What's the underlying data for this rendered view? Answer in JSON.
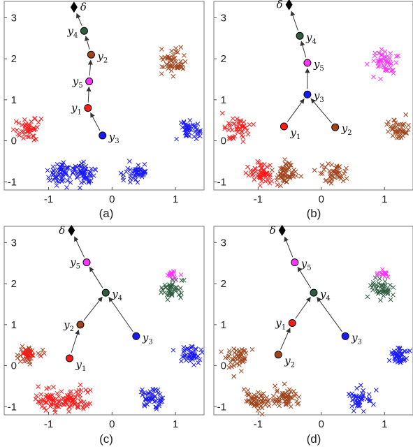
{
  "figure": {
    "colors": {
      "red": "#ff1a1a",
      "blue": "#1a1aff",
      "brown": "#a0441c",
      "green": "#2e5d40",
      "magenta": "#ff33ff",
      "black": "#000000"
    }
  },
  "chart_data": [
    {
      "type": "scatter",
      "panel_label": "(a)",
      "title": "",
      "xlabel": "",
      "ylabel": "",
      "xlim": [
        -1.7,
        1.45
      ],
      "ylim": [
        -1.2,
        3.4
      ],
      "xticks": [
        "-1",
        "0",
        "1"
      ],
      "xtick_values": [
        -1,
        0,
        1
      ],
      "yticks": [
        "-1",
        "0",
        "1",
        "2",
        "3"
      ],
      "ytick_values": [
        -1,
        0,
        1,
        2,
        3
      ],
      "grid": false,
      "clusters": [
        {
          "center": [
            -1.32,
            0.27
          ],
          "spread": [
            0.11,
            0.14
          ],
          "color": "red",
          "count": 45
        },
        {
          "center": [
            -0.82,
            -0.82
          ],
          "spread": [
            0.1,
            0.12
          ],
          "color": "blue",
          "count": 55
        },
        {
          "center": [
            -0.46,
            -0.82
          ],
          "spread": [
            0.1,
            0.14
          ],
          "color": "blue",
          "count": 60
        },
        {
          "center": [
            0.36,
            -0.8
          ],
          "spread": [
            0.1,
            0.12
          ],
          "color": "blue",
          "count": 50
        },
        {
          "center": [
            0.95,
            1.95
          ],
          "spread": [
            0.09,
            0.15
          ],
          "color": "brown",
          "count": 50
        },
        {
          "center": [
            1.23,
            0.26
          ],
          "spread": [
            0.09,
            0.11
          ],
          "color": "blue",
          "count": 45
        }
      ],
      "nodes": [
        {
          "label": "y",
          "sub": "1",
          "x": -0.38,
          "y": 0.8,
          "color": "red",
          "label_side": "left"
        },
        {
          "label": "y",
          "sub": "2",
          "x": -0.33,
          "y": 2.1,
          "color": "brown",
          "label_side": "right"
        },
        {
          "label": "y",
          "sub": "3",
          "x": -0.15,
          "y": 0.13,
          "color": "blue",
          "label_side": "right"
        },
        {
          "label": "y",
          "sub": "4",
          "x": -0.44,
          "y": 2.68,
          "color": "green",
          "label_side": "left"
        },
        {
          "label": "y",
          "sub": "5",
          "x": -0.36,
          "y": 1.45,
          "color": "magenta",
          "label_side": "left"
        }
      ],
      "root": {
        "label": "δ",
        "x": -0.6,
        "y": 3.26,
        "label_side": "right"
      },
      "edges": [
        [
          "y3",
          "y1"
        ],
        [
          "y1",
          "y5"
        ],
        [
          "y5",
          "y2"
        ],
        [
          "y2",
          "y4"
        ],
        [
          "y4",
          "root"
        ]
      ]
    },
    {
      "type": "scatter",
      "panel_label": "(b)",
      "title": "",
      "xlabel": "",
      "ylabel": "",
      "xlim": [
        -1.7,
        1.45
      ],
      "ylim": [
        -1.2,
        3.4
      ],
      "xticks": [
        "-1",
        "0",
        "1"
      ],
      "xtick_values": [
        -1,
        0,
        1
      ],
      "yticks": [
        "-1",
        "0",
        "1",
        "2",
        "3"
      ],
      "ytick_values": [
        -1,
        0,
        1,
        2,
        3
      ],
      "grid": false,
      "clusters": [
        {
          "center": [
            -1.32,
            0.27
          ],
          "spread": [
            0.11,
            0.14
          ],
          "color": "red",
          "count": 45
        },
        {
          "center": [
            -0.95,
            -0.82
          ],
          "spread": [
            0.1,
            0.12
          ],
          "color": "red",
          "count": 55
        },
        {
          "center": [
            -0.58,
            -0.82
          ],
          "spread": [
            0.1,
            0.14
          ],
          "color": "brown",
          "count": 55
        },
        {
          "center": [
            0.22,
            -0.82
          ],
          "spread": [
            0.09,
            0.12
          ],
          "color": "brown",
          "count": 45
        },
        {
          "center": [
            0.98,
            1.92
          ],
          "spread": [
            0.09,
            0.15
          ],
          "color": "magenta",
          "count": 50
        },
        {
          "center": [
            1.23,
            0.26
          ],
          "spread": [
            0.09,
            0.11
          ],
          "color": "brown",
          "count": 45
        }
      ],
      "nodes": [
        {
          "label": "y",
          "sub": "1",
          "x": -0.59,
          "y": 0.35,
          "color": "red",
          "label_side": "below-right"
        },
        {
          "label": "y",
          "sub": "2",
          "x": 0.22,
          "y": 0.33,
          "color": "brown",
          "label_side": "right"
        },
        {
          "label": "y",
          "sub": "3",
          "x": -0.22,
          "y": 1.13,
          "color": "blue",
          "label_side": "right"
        },
        {
          "label": "y",
          "sub": "4",
          "x": -0.34,
          "y": 2.56,
          "color": "green",
          "label_side": "right"
        },
        {
          "label": "y",
          "sub": "5",
          "x": -0.22,
          "y": 1.9,
          "color": "magenta",
          "label_side": "right"
        }
      ],
      "root": {
        "label": "δ",
        "x": -0.51,
        "y": 3.32,
        "label_side": "left"
      },
      "edges": [
        [
          "y1",
          "y3"
        ],
        [
          "y2",
          "y3"
        ],
        [
          "y3",
          "y5"
        ],
        [
          "y5",
          "y4"
        ],
        [
          "y4",
          "root"
        ]
      ]
    },
    {
      "type": "scatter",
      "panel_label": "(c)",
      "title": "",
      "xlabel": "",
      "ylabel": "",
      "xlim": [
        -1.7,
        1.45
      ],
      "ylim": [
        -1.2,
        3.4
      ],
      "xticks": [
        "-1",
        "0",
        "1"
      ],
      "xtick_values": [
        -1,
        0,
        1
      ],
      "yticks": [
        "-1",
        "0",
        "1",
        "2",
        "3"
      ],
      "ytick_values": [
        -1,
        0,
        1,
        2,
        3
      ],
      "grid": false,
      "clusters": [
        {
          "center": [
            -1.32,
            0.27
          ],
          "spread": [
            0.11,
            0.14
          ],
          "color": "brown",
          "count": 30
        },
        {
          "center": [
            -1.32,
            0.22
          ],
          "spread": [
            0.09,
            0.1
          ],
          "color": "red",
          "count": 18
        },
        {
          "center": [
            -0.98,
            -0.84
          ],
          "spread": [
            0.11,
            0.13
          ],
          "color": "red",
          "count": 55
        },
        {
          "center": [
            -0.58,
            -0.84
          ],
          "spread": [
            0.11,
            0.14
          ],
          "color": "red",
          "count": 60
        },
        {
          "center": [
            0.62,
            -0.82
          ],
          "spread": [
            0.1,
            0.12
          ],
          "color": "blue",
          "count": 50
        },
        {
          "center": [
            0.95,
            1.86
          ],
          "spread": [
            0.09,
            0.12
          ],
          "color": "green",
          "count": 45
        },
        {
          "center": [
            0.95,
            2.24
          ],
          "spread": [
            0.06,
            0.05
          ],
          "color": "magenta",
          "count": 15
        },
        {
          "center": [
            1.23,
            0.26
          ],
          "spread": [
            0.09,
            0.11
          ],
          "color": "blue",
          "count": 45
        }
      ],
      "nodes": [
        {
          "label": "y",
          "sub": "1",
          "x": -0.67,
          "y": 0.18,
          "color": "red",
          "label_side": "below-right"
        },
        {
          "label": "y",
          "sub": "2",
          "x": -0.5,
          "y": 1.0,
          "color": "brown",
          "label_side": "left"
        },
        {
          "label": "y",
          "sub": "3",
          "x": 0.38,
          "y": 0.72,
          "color": "blue",
          "label_side": "right"
        },
        {
          "label": "y",
          "sub": "4",
          "x": -0.1,
          "y": 1.78,
          "color": "green",
          "label_side": "right"
        },
        {
          "label": "y",
          "sub": "5",
          "x": -0.4,
          "y": 2.52,
          "color": "magenta",
          "label_side": "left"
        }
      ],
      "root": {
        "label": "δ",
        "x": -0.64,
        "y": 3.3,
        "label_side": "left"
      },
      "edges": [
        [
          "y1",
          "y2"
        ],
        [
          "y2",
          "y4"
        ],
        [
          "y3",
          "y4"
        ],
        [
          "y4",
          "y5"
        ],
        [
          "y5",
          "root"
        ]
      ]
    },
    {
      "type": "scatter",
      "panel_label": "(d)",
      "title": "",
      "xlabel": "",
      "ylabel": "",
      "xlim": [
        -1.7,
        1.45
      ],
      "ylim": [
        -1.2,
        3.4
      ],
      "xticks": [
        "-1",
        "0",
        "1"
      ],
      "xtick_values": [
        -1,
        0,
        1
      ],
      "yticks": [
        "-1",
        "0",
        "1",
        "2",
        "3"
      ],
      "ytick_values": [
        -1,
        0,
        1,
        2,
        3
      ],
      "grid": false,
      "clusters": [
        {
          "center": [
            -1.32,
            0.22
          ],
          "spread": [
            0.11,
            0.15
          ],
          "color": "brown",
          "count": 45
        },
        {
          "center": [
            -1.0,
            -0.84
          ],
          "spread": [
            0.1,
            0.12
          ],
          "color": "brown",
          "count": 50
        },
        {
          "center": [
            -0.58,
            -0.82
          ],
          "spread": [
            0.1,
            0.14
          ],
          "color": "brown",
          "count": 55
        },
        {
          "center": [
            0.6,
            -0.82
          ],
          "spread": [
            0.09,
            0.12
          ],
          "color": "blue",
          "count": 45
        },
        {
          "center": [
            0.95,
            1.86
          ],
          "spread": [
            0.09,
            0.12
          ],
          "color": "green",
          "count": 45
        },
        {
          "center": [
            0.98,
            2.24
          ],
          "spread": [
            0.06,
            0.05
          ],
          "color": "magenta",
          "count": 15
        },
        {
          "center": [
            1.23,
            0.26
          ],
          "spread": [
            0.09,
            0.11
          ],
          "color": "blue",
          "count": 45
        }
      ],
      "nodes": [
        {
          "label": "y",
          "sub": "1",
          "x": -0.46,
          "y": 1.04,
          "color": "red",
          "label_side": "left"
        },
        {
          "label": "y",
          "sub": "2",
          "x": -0.68,
          "y": 0.27,
          "color": "brown",
          "label_side": "below-right"
        },
        {
          "label": "y",
          "sub": "3",
          "x": 0.38,
          "y": 0.72,
          "color": "blue",
          "label_side": "right"
        },
        {
          "label": "y",
          "sub": "4",
          "x": -0.12,
          "y": 1.78,
          "color": "green",
          "label_side": "right"
        },
        {
          "label": "y",
          "sub": "5",
          "x": -0.42,
          "y": 2.52,
          "color": "magenta",
          "label_side": "right"
        }
      ],
      "root": {
        "label": "δ",
        "x": -0.62,
        "y": 3.3,
        "label_side": "left"
      },
      "edges": [
        [
          "y2",
          "y1"
        ],
        [
          "y1",
          "y4"
        ],
        [
          "y3",
          "y4"
        ],
        [
          "y4",
          "y5"
        ],
        [
          "y5",
          "root"
        ]
      ]
    }
  ]
}
